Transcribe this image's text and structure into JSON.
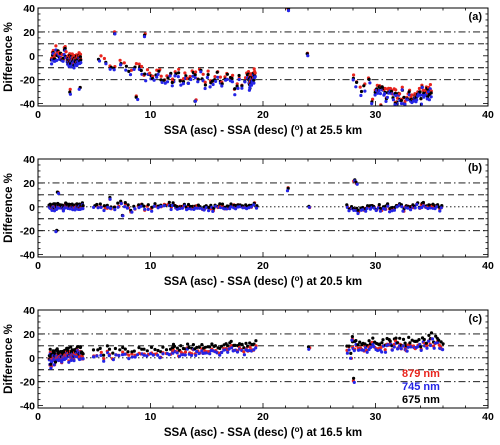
{
  "colors": {
    "red": "#e8241d",
    "blue": "#2424e6",
    "black": "#000000"
  },
  "chart_data": [
    {
      "type": "scatter",
      "panel_label": "(a)",
      "xlabel_parts": [
        "SSA (asc) - SSA (desc) (",
        "o",
        ") at 25.5 km"
      ],
      "ylabel": "Difference %",
      "xlim": [
        0,
        40
      ],
      "ylim": [
        -42,
        40
      ],
      "xticks": [
        0,
        10,
        20,
        30,
        40
      ],
      "yticks": [
        -40,
        -20,
        0,
        20,
        40
      ],
      "reflines": [
        {
          "y": 20,
          "style": "dashdot"
        },
        {
          "y": 10,
          "style": "dashed"
        },
        {
          "y": -10,
          "style": "dashed"
        },
        {
          "y": -20,
          "style": "dashdot"
        }
      ],
      "clusters": [
        {
          "x": [
            1.2,
            2.5
          ],
          "y": [
            -2,
            3
          ],
          "sy": 5,
          "step": 0.08
        },
        {
          "x": [
            2.6,
            3.8
          ],
          "y": [
            -4,
            -3
          ],
          "sy": 3,
          "step": 0.03
        },
        {
          "x": [
            5.5,
            9.0
          ],
          "y": [
            -8,
            -12
          ],
          "sy": 6,
          "step": 0.45
        },
        {
          "x": [
            9.0,
            12.0
          ],
          "y": [
            -14,
            -18
          ],
          "sy": 6,
          "step": 0.25
        },
        {
          "x": [
            12.0,
            19.0
          ],
          "y": [
            -18,
            -22
          ],
          "sy": 6,
          "step": 0.22
        },
        {
          "x": [
            18.7,
            19.3
          ],
          "y": [
            -18,
            -20
          ],
          "sy": 5,
          "step": 0.04
        },
        {
          "x": [
            28.0,
            30.0
          ],
          "y": [
            -22,
            -30
          ],
          "sy": 8,
          "step": 0.35
        },
        {
          "x": [
            30.0,
            33.5
          ],
          "y": [
            -30,
            -34
          ],
          "sy": 6,
          "step": 0.12
        },
        {
          "x": [
            33.5,
            35.0
          ],
          "y": [
            -34,
            -28
          ],
          "sy": 5,
          "step": 0.08
        }
      ],
      "points": [
        {
          "x": 22.2,
          "y": 39
        },
        {
          "x": 24.0,
          "y": 1
        },
        {
          "x": 6.8,
          "y": 19
        },
        {
          "x": 9.5,
          "y": 17
        },
        {
          "x": 2.9,
          "y": -30
        },
        {
          "x": 3.7,
          "y": -27
        },
        {
          "x": 8.8,
          "y": -35
        },
        {
          "x": 14.0,
          "y": -38
        },
        {
          "x": 30.5,
          "y": -42
        },
        {
          "x": 31.8,
          "y": -40
        }
      ],
      "series_offsets": {
        "red": 2,
        "blue": -2,
        "black": 0
      },
      "legend": []
    },
    {
      "type": "scatter",
      "panel_label": "(b)",
      "xlabel_parts": [
        "SSA (asc) - SSA (desc) (",
        "o",
        ") at 20.5 km"
      ],
      "ylabel": "Difference %",
      "xlim": [
        0,
        40
      ],
      "ylim": [
        -42,
        40
      ],
      "xticks": [
        0,
        10,
        20,
        30,
        40
      ],
      "yticks": [
        -40,
        -20,
        0,
        20,
        40
      ],
      "reflines": [
        {
          "y": 20,
          "style": "dashdot"
        },
        {
          "y": 10,
          "style": "dashed"
        },
        {
          "y": 0,
          "style": "dotted"
        },
        {
          "y": -10,
          "style": "dashed"
        },
        {
          "y": -20,
          "style": "dashdot"
        }
      ],
      "clusters": [
        {
          "x": [
            1.0,
            4.0
          ],
          "y": [
            0,
            0
          ],
          "sy": 2,
          "step": 0.05
        },
        {
          "x": [
            5.0,
            12.0
          ],
          "y": [
            0,
            0
          ],
          "sy": 4,
          "step": 0.3
        },
        {
          "x": [
            12.0,
            19.5
          ],
          "y": [
            -1,
            0
          ],
          "sy": 3,
          "step": 0.2
        },
        {
          "x": [
            27.5,
            36.0
          ],
          "y": [
            -2,
            1
          ],
          "sy": 3,
          "step": 0.2
        }
      ],
      "points": [
        {
          "x": 1.8,
          "y": 12
        },
        {
          "x": 1.6,
          "y": -20
        },
        {
          "x": 22.2,
          "y": 15
        },
        {
          "x": 28.1,
          "y": 22
        },
        {
          "x": 28.3,
          "y": 20
        },
        {
          "x": 24.1,
          "y": 0
        },
        {
          "x": 7.5,
          "y": -7
        },
        {
          "x": 6.4,
          "y": 7
        }
      ],
      "series_offsets": {
        "red": 0,
        "blue": -1,
        "black": 1
      },
      "legend": []
    },
    {
      "type": "scatter",
      "panel_label": "(c)",
      "xlabel_parts": [
        "SSA (asc) - SSA (desc) (",
        "o",
        ") at 16.5 km"
      ],
      "ylabel": "Difference %",
      "xlim": [
        0,
        40
      ],
      "ylim": [
        -42,
        40
      ],
      "xticks": [
        0,
        10,
        20,
        30,
        40
      ],
      "yticks": [
        -40,
        -20,
        0,
        20,
        40
      ],
      "reflines": [
        {
          "y": 20,
          "style": "dashdot"
        },
        {
          "y": 10,
          "style": "dashed"
        },
        {
          "y": 0,
          "style": "dotted"
        },
        {
          "y": -10,
          "style": "dashed"
        },
        {
          "y": -20,
          "style": "dashdot"
        }
      ],
      "clusters": [
        {
          "x": [
            1.0,
            4.0
          ],
          "y": [
            -2,
            2
          ],
          "sy": 4,
          "step": 0.05
        },
        {
          "x": [
            5.0,
            12.0
          ],
          "y": [
            1,
            3
          ],
          "sy": 3,
          "step": 0.28
        },
        {
          "x": [
            12.0,
            19.5
          ],
          "y": [
            3,
            7
          ],
          "sy": 3,
          "step": 0.18
        },
        {
          "x": [
            27.5,
            36.0
          ],
          "y": [
            5,
            11
          ],
          "sy": 5,
          "step": 0.16
        }
      ],
      "points": [
        {
          "x": 1.2,
          "y": -8
        },
        {
          "x": 1.5,
          "y": -6
        },
        {
          "x": 28.1,
          "y": -20
        },
        {
          "x": 24.1,
          "y": 7
        },
        {
          "x": 27.9,
          "y": 15
        }
      ],
      "series_offsets": {
        "red": 1,
        "blue": 0,
        "black": 5
      },
      "legend": [
        {
          "label": "879 nm",
          "color": "#e8241d"
        },
        {
          "label": "745 nm",
          "color": "#2424e6"
        },
        {
          "label": "675 nm",
          "color": "#000000"
        }
      ]
    }
  ]
}
